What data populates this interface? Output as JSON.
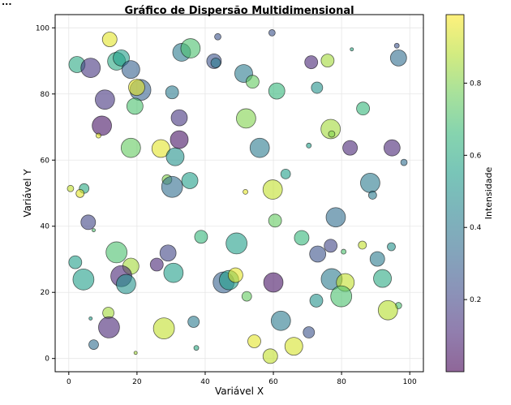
{
  "corner_text": "...",
  "chart_data": {
    "type": "scatter",
    "title": "Gráfico de Dispersão Multidimensional",
    "xlabel": "Variável X",
    "ylabel": "Variável Y",
    "xlim": [
      -4,
      104
    ],
    "ylim": [
      -4,
      104
    ],
    "xticks": [
      0,
      20,
      40,
      60,
      80,
      100
    ],
    "yticks": [
      0,
      20,
      40,
      60,
      80,
      100
    ],
    "grid": true,
    "colormap": "viridis",
    "alpha": 0.6,
    "colorbar": {
      "label": "Intensidade",
      "ticks": [
        0.2,
        0.4,
        0.6,
        0.8
      ],
      "range": [
        0.0,
        0.99
      ]
    },
    "point_fields": [
      "x",
      "y",
      "size",
      "intensity"
    ],
    "points": [
      [
        2.4,
        88.9,
        600,
        0.6
      ],
      [
        6.4,
        87.9,
        860,
        0.15
      ],
      [
        12,
        96.5,
        490,
        0.95
      ],
      [
        14,
        89.9,
        730,
        0.6
      ],
      [
        15.4,
        90.9,
        600,
        0.55
      ],
      [
        18.2,
        87.4,
        730,
        0.3
      ],
      [
        21,
        81.2,
        1010,
        0.3
      ],
      [
        19.9,
        82,
        600,
        0.95
      ],
      [
        10.6,
        78.3,
        860,
        0.15
      ],
      [
        19.4,
        76.3,
        600,
        0.7
      ],
      [
        9.7,
        70.4,
        860,
        0.05
      ],
      [
        8.7,
        67.4,
        55,
        0.95
      ],
      [
        18.2,
        63.7,
        860,
        0.75
      ],
      [
        27,
        63.5,
        730,
        0.95
      ],
      [
        31.2,
        61,
        730,
        0.5
      ],
      [
        32.4,
        66.2,
        730,
        0.05
      ],
      [
        32.4,
        72.8,
        600,
        0.15
      ],
      [
        30.3,
        80.5,
        385,
        0.4
      ],
      [
        33.1,
        92.6,
        730,
        0.4
      ],
      [
        35.7,
        93.8,
        860,
        0.7
      ],
      [
        43.7,
        97.3,
        95,
        0.25
      ],
      [
        42.6,
        89.9,
        490,
        0.25
      ],
      [
        43.1,
        89.4,
        215,
        0.4
      ],
      [
        0.5,
        51.4,
        95,
        0.9
      ],
      [
        4.5,
        51.4,
        215,
        0.6
      ],
      [
        3.3,
        49.9,
        150,
        0.95
      ],
      [
        28.8,
        54.1,
        215,
        0.8
      ],
      [
        30.3,
        51.9,
        1010,
        0.35
      ],
      [
        35.5,
        53.8,
        600,
        0.55
      ],
      [
        59.6,
        98.5,
        95,
        0.25
      ],
      [
        96.2,
        94.6,
        55,
        0.25
      ],
      [
        83,
        93.5,
        25,
        0.6
      ],
      [
        96.7,
        90.9,
        600,
        0.35
      ],
      [
        71.1,
        89.6,
        385,
        0.1
      ],
      [
        75.9,
        90.1,
        385,
        0.85
      ],
      [
        51.3,
        86.2,
        730,
        0.4
      ],
      [
        53.9,
        83.7,
        385,
        0.75
      ],
      [
        61,
        80.9,
        600,
        0.65
      ],
      [
        72.8,
        81.9,
        295,
        0.5
      ],
      [
        86.3,
        75.6,
        385,
        0.65
      ],
      [
        52,
        72.6,
        860,
        0.8
      ],
      [
        76.8,
        69.4,
        860,
        0.85
      ],
      [
        77.1,
        67.9,
        95,
        0.8
      ],
      [
        70.4,
        64.4,
        55,
        0.55
      ],
      [
        56,
        63.7,
        860,
        0.4
      ],
      [
        82.5,
        63.7,
        490,
        0.1
      ],
      [
        94.8,
        63.7,
        600,
        0.1
      ],
      [
        98.3,
        59.3,
        95,
        0.35
      ],
      [
        63.6,
        55.8,
        215,
        0.55
      ],
      [
        51.8,
        50.4,
        55,
        0.95
      ],
      [
        59.8,
        51.1,
        860,
        0.9
      ],
      [
        88.4,
        53.1,
        860,
        0.4
      ],
      [
        89.1,
        49.4,
        150,
        0.4
      ],
      [
        5.7,
        41.2,
        490,
        0.2
      ],
      [
        7.3,
        38.8,
        25,
        0.7
      ],
      [
        38.8,
        36.8,
        385,
        0.65
      ],
      [
        49.2,
        34.8,
        1010,
        0.55
      ],
      [
        14,
        32.1,
        1010,
        0.7
      ],
      [
        18.2,
        27.9,
        600,
        0.85
      ],
      [
        29.1,
        31.9,
        600,
        0.2
      ],
      [
        25.8,
        28.4,
        385,
        0.1
      ],
      [
        1.9,
        29.1,
        385,
        0.55
      ],
      [
        4.3,
        23.9,
        1010,
        0.55
      ],
      [
        15.4,
        24.9,
        1010,
        0.1
      ],
      [
        16.8,
        22.5,
        860,
        0.5
      ],
      [
        30.7,
        25.9,
        860,
        0.55
      ],
      [
        11.6,
        13.8,
        295,
        0.85
      ],
      [
        6.4,
        12.1,
        25,
        0.55
      ],
      [
        11.8,
        9.4,
        1010,
        0.1
      ],
      [
        7.3,
        4.2,
        215,
        0.35
      ],
      [
        19.6,
        1.7,
        25,
        0.85
      ],
      [
        27.9,
        9.1,
        1010,
        0.9
      ],
      [
        36.6,
        11.1,
        295,
        0.4
      ],
      [
        37.4,
        3.2,
        55,
        0.6
      ],
      [
        45.4,
        23,
        1010,
        0.3
      ],
      [
        47,
        23.7,
        860,
        0.55
      ],
      [
        48.9,
        25.2,
        490,
        0.95
      ],
      [
        60.5,
        41.7,
        385,
        0.75
      ],
      [
        78.3,
        42.7,
        860,
        0.35
      ],
      [
        68.3,
        36.5,
        490,
        0.65
      ],
      [
        76.8,
        34.1,
        385,
        0.2
      ],
      [
        73,
        31.6,
        600,
        0.25
      ],
      [
        80.6,
        32.3,
        55,
        0.7
      ],
      [
        86.1,
        34.3,
        150,
        0.9
      ],
      [
        94.6,
        33.8,
        150,
        0.5
      ],
      [
        90.5,
        30.1,
        490,
        0.4
      ],
      [
        77.1,
        24,
        1010,
        0.4
      ],
      [
        81.1,
        23,
        730,
        0.9
      ],
      [
        92,
        24.2,
        730,
        0.6
      ],
      [
        60,
        23,
        860,
        0.05
      ],
      [
        79.9,
        18.8,
        1010,
        0.7
      ],
      [
        52.2,
        18.8,
        215,
        0.75
      ],
      [
        72.6,
        17.5,
        385,
        0.5
      ],
      [
        96.7,
        16,
        95,
        0.7
      ],
      [
        93.6,
        14.6,
        860,
        0.88
      ],
      [
        62.2,
        11.4,
        860,
        0.4
      ],
      [
        70.4,
        7.9,
        295,
        0.25
      ],
      [
        54.4,
        5.2,
        385,
        0.95
      ],
      [
        66,
        3.7,
        730,
        0.93
      ],
      [
        59.1,
        0.7,
        490,
        0.9
      ]
    ]
  }
}
